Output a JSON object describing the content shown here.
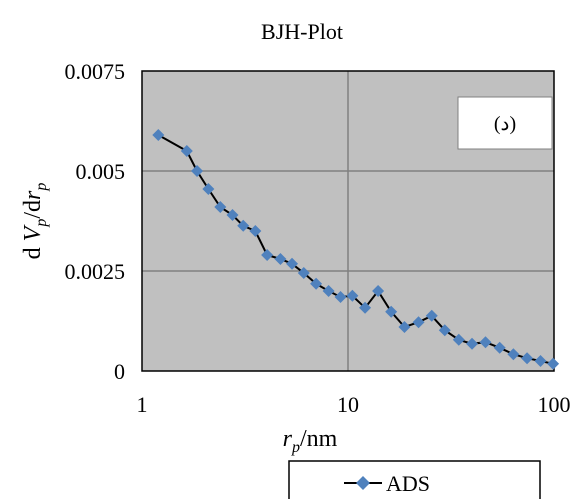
{
  "chart_data": {
    "type": "line",
    "title": "BJH-Plot",
    "xlabel": {
      "var": "r",
      "sub": "p",
      "unit": "/nm"
    },
    "ylabel": {
      "d1": "d ",
      "v": "V",
      "vsub": "p",
      "sep": "/d",
      "r": "r",
      "rsub": "p"
    },
    "x_scale": "log",
    "xlim": [
      1,
      100
    ],
    "ylim": [
      0,
      0.0075
    ],
    "x_ticks": [
      1,
      10,
      100
    ],
    "x_tick_labels": [
      "1",
      "10",
      "100"
    ],
    "y_ticks": [
      0,
      0.0025,
      0.005,
      0.0075
    ],
    "y_tick_labels": [
      "0",
      "0.0025",
      "0.005",
      "0.0075"
    ],
    "grid": true,
    "plot_background": "#c0c0c0",
    "annotation": "(د)",
    "legend_position": "bottom",
    "series": [
      {
        "name": "ADS",
        "color": "#4f81bd",
        "line_color": "#000000",
        "marker": "diamond",
        "x": [
          1.2,
          1.65,
          1.85,
          2.1,
          2.4,
          2.75,
          3.1,
          3.55,
          4.05,
          4.7,
          5.35,
          6.1,
          7.0,
          8.05,
          9.2,
          10.5,
          12.1,
          14.0,
          16.2,
          18.8,
          22.0,
          25.5,
          29.5,
          34.5,
          40.0,
          46.5,
          54.5,
          63.5,
          74.0,
          86.0,
          99.0
        ],
        "y": [
          0.0059,
          0.0055,
          0.005,
          0.00455,
          0.0041,
          0.0039,
          0.00363,
          0.0035,
          0.0029,
          0.0028,
          0.00268,
          0.00245,
          0.00218,
          0.002,
          0.00185,
          0.00188,
          0.00158,
          0.002,
          0.00148,
          0.0011,
          0.00122,
          0.00138,
          0.00102,
          0.00078,
          0.00068,
          0.00072,
          0.00058,
          0.00042,
          0.00032,
          0.00025,
          0.00018
        ]
      }
    ]
  }
}
